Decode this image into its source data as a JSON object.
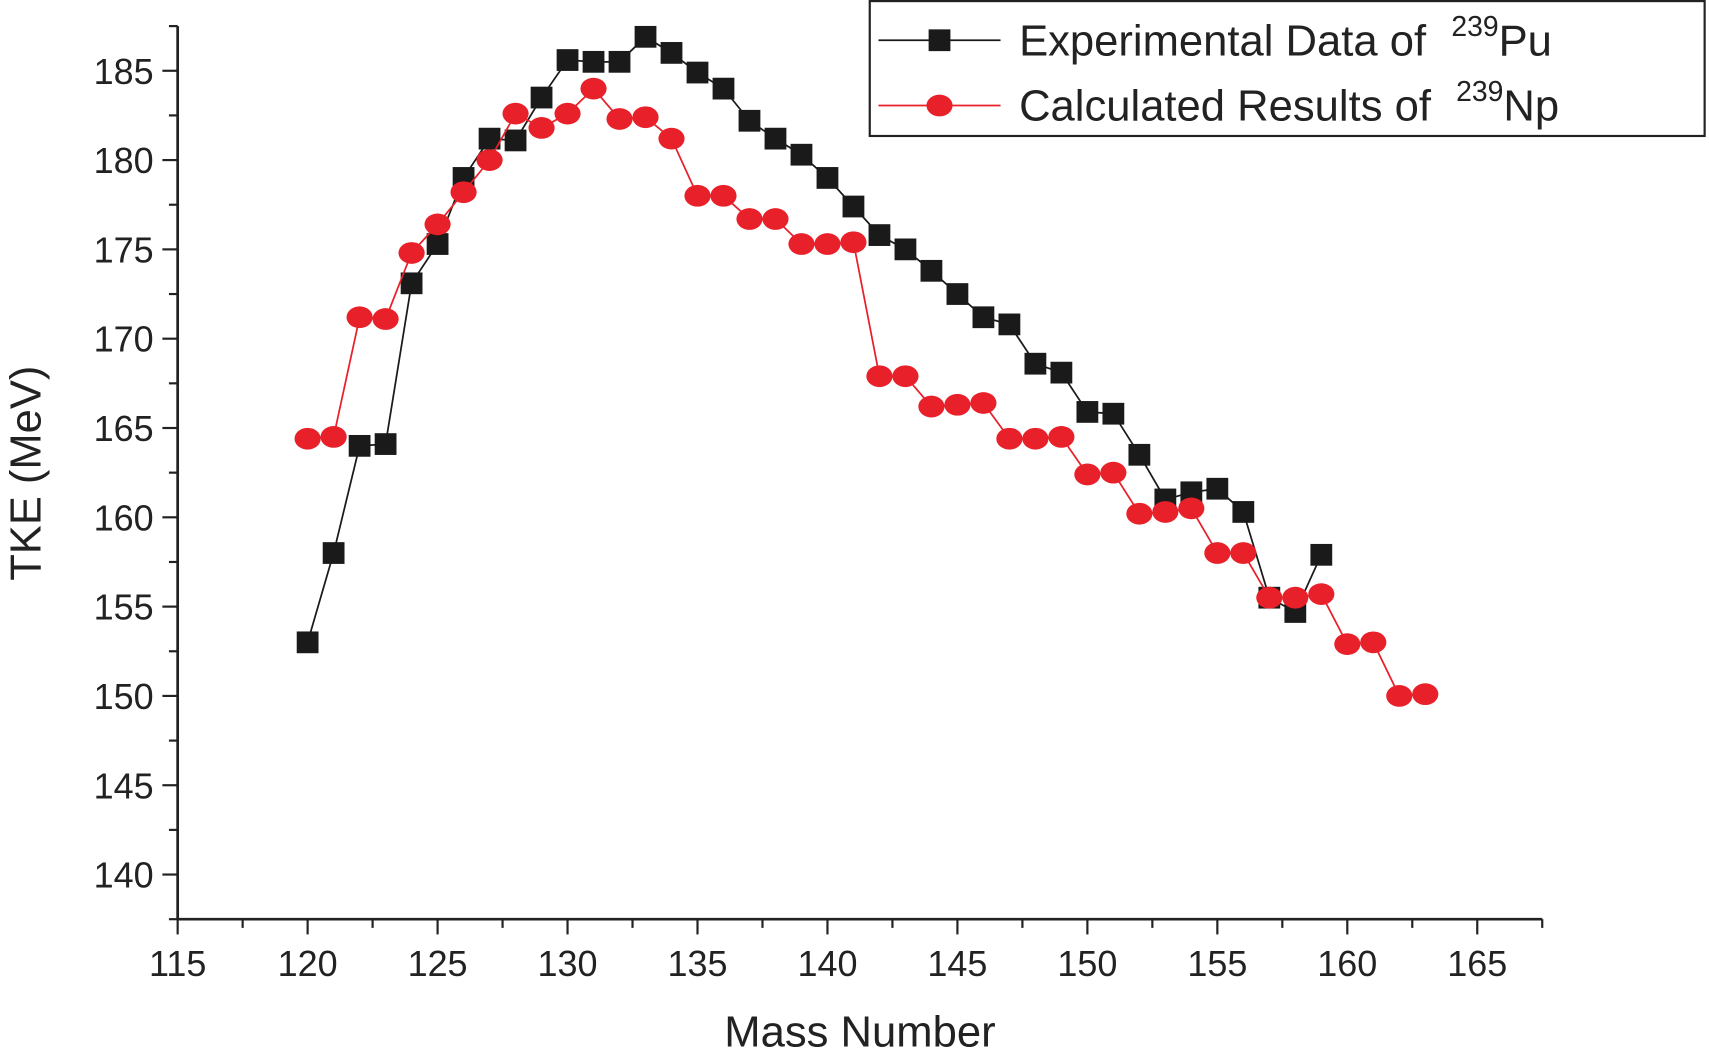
{
  "chart_data": {
    "type": "line",
    "title": "",
    "xlabel": "Mass Number",
    "ylabel": "TKE (MeV)",
    "xlim": [
      115,
      167.5
    ],
    "ylim": [
      137.5,
      187.5
    ],
    "xticks": [
      115,
      120,
      125,
      130,
      135,
      140,
      145,
      150,
      155,
      160,
      165
    ],
    "yticks": [
      140,
      145,
      150,
      155,
      160,
      165,
      170,
      175,
      180,
      185
    ],
    "grid": false,
    "legend_position": "top-right",
    "series": [
      {
        "name": "Experimental Data of 239Pu",
        "legend_text": "Experimental Data of ",
        "legend_sup": "239",
        "legend_elem": "Pu",
        "marker": "square",
        "color": "#1a1a1a",
        "x": [
          120,
          121,
          122,
          123,
          124,
          125,
          126,
          127,
          128,
          129,
          130,
          131,
          132,
          133,
          134,
          135,
          136,
          137,
          138,
          139,
          140,
          141,
          142,
          143,
          144,
          145,
          146,
          147,
          148,
          149,
          150,
          151,
          152,
          153,
          154,
          155,
          156,
          157,
          158,
          159
        ],
        "y": [
          153.0,
          158.0,
          164.0,
          164.1,
          173.1,
          175.3,
          179.0,
          181.2,
          181.1,
          183.5,
          185.6,
          185.5,
          185.5,
          186.9,
          186.0,
          184.9,
          184.0,
          182.2,
          181.2,
          180.3,
          179.0,
          177.4,
          175.8,
          175.0,
          173.8,
          172.5,
          171.2,
          170.8,
          168.6,
          168.1,
          165.9,
          165.8,
          163.5,
          161.0,
          161.4,
          161.6,
          160.3,
          155.5,
          154.7,
          157.9
        ]
      },
      {
        "name": "Calculated Results of 239Np",
        "legend_text": "Calculated Results of ",
        "legend_sup": "239",
        "legend_elem": "Np",
        "marker": "circle",
        "color": "#e8202a",
        "x": [
          120,
          121,
          122,
          123,
          124,
          125,
          126,
          127,
          128,
          129,
          130,
          131,
          132,
          133,
          134,
          135,
          136,
          137,
          138,
          139,
          140,
          141,
          142,
          143,
          144,
          145,
          146,
          147,
          148,
          149,
          150,
          151,
          152,
          153,
          154,
          155,
          156,
          157,
          158,
          159,
          160,
          161,
          162,
          163
        ],
        "y": [
          164.4,
          164.5,
          171.2,
          171.1,
          174.8,
          176.4,
          178.2,
          180.0,
          182.6,
          181.8,
          182.6,
          184.0,
          182.3,
          182.4,
          181.2,
          178.0,
          178.0,
          176.7,
          176.7,
          175.3,
          175.3,
          175.4,
          167.9,
          167.9,
          166.2,
          166.3,
          166.4,
          164.4,
          164.4,
          164.5,
          162.4,
          162.5,
          160.2,
          160.3,
          160.5,
          158.0,
          158.0,
          155.5,
          155.5,
          155.7,
          152.9,
          153.0,
          150.0,
          150.1
        ]
      }
    ]
  }
}
